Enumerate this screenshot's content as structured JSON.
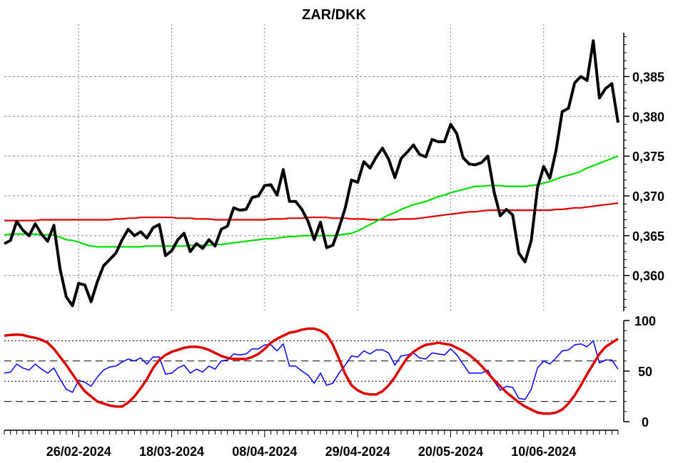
{
  "chart_data": [
    {
      "type": "line",
      "title": "ZAR/DKK",
      "x_labels": [
        "26/02-2024",
        "18/03-2024",
        "08/04-2024",
        "29/04-2024",
        "20/05-2024",
        "10/06-2024"
      ],
      "yticks": [
        "0,360",
        "0,365",
        "0,370",
        "0,375",
        "0,380",
        "0,385"
      ],
      "ylim": [
        0.3555,
        0.3905
      ],
      "grid": true,
      "series": [
        {
          "color": "#000000",
          "values": [
            0.364,
            0.3644,
            0.3668,
            0.3657,
            0.365,
            0.3665,
            0.3652,
            0.3643,
            0.3663,
            0.3608,
            0.3573,
            0.3562,
            0.359,
            0.3588,
            0.3567,
            0.3592,
            0.3612,
            0.362,
            0.3628,
            0.3645,
            0.3658,
            0.365,
            0.3655,
            0.3647,
            0.366,
            0.3664,
            0.3625,
            0.3631,
            0.3645,
            0.3653,
            0.363,
            0.364,
            0.3634,
            0.3645,
            0.3637,
            0.3658,
            0.3662,
            0.3685,
            0.3682,
            0.3683,
            0.3698,
            0.37,
            0.3713,
            0.3714,
            0.3701,
            0.3733,
            0.3693,
            0.3693,
            0.3683,
            0.3668,
            0.3645,
            0.3667,
            0.3635,
            0.3638,
            0.366,
            0.3685,
            0.372,
            0.3717,
            0.3743,
            0.3735,
            0.3749,
            0.376,
            0.3746,
            0.3723,
            0.3747,
            0.3755,
            0.3764,
            0.3752,
            0.3749,
            0.3771,
            0.3768,
            0.3768,
            0.379,
            0.3778,
            0.3748,
            0.374,
            0.3739,
            0.3742,
            0.375,
            0.3705,
            0.3675,
            0.3683,
            0.3676,
            0.3628,
            0.3617,
            0.3644,
            0.371,
            0.3737,
            0.3722,
            0.3757,
            0.3806,
            0.381,
            0.3842,
            0.385,
            0.3845,
            0.3895,
            0.3823,
            0.3835,
            0.3841,
            0.3792
          ]
        },
        {
          "color": "#00dd00",
          "values": [
            0.3651,
            0.3652,
            0.3652,
            0.3652,
            0.3652,
            0.3652,
            0.3651,
            0.3651,
            0.3651,
            0.3648,
            0.3645,
            0.3644,
            0.3642,
            0.3639,
            0.3637,
            0.3636,
            0.3636,
            0.3636,
            0.3636,
            0.3636,
            0.3636,
            0.3636,
            0.3636,
            0.3637,
            0.3637,
            0.3637,
            0.3637,
            0.3637,
            0.3637,
            0.3637,
            0.3638,
            0.3638,
            0.3638,
            0.3638,
            0.3639,
            0.3639,
            0.364,
            0.3641,
            0.3642,
            0.3643,
            0.3644,
            0.3645,
            0.3646,
            0.3646,
            0.3647,
            0.3648,
            0.3649,
            0.3649,
            0.365,
            0.365,
            0.365,
            0.365,
            0.365,
            0.365,
            0.3651,
            0.3652,
            0.3653,
            0.3656,
            0.366,
            0.3664,
            0.3668,
            0.3672,
            0.3676,
            0.3679,
            0.3683,
            0.3686,
            0.3689,
            0.3691,
            0.3693,
            0.3696,
            0.3699,
            0.3701,
            0.3704,
            0.3706,
            0.3708,
            0.371,
            0.3712,
            0.3712,
            0.3713,
            0.3713,
            0.3713,
            0.3712,
            0.3712,
            0.3712,
            0.3712,
            0.3713,
            0.3714,
            0.3716,
            0.3718,
            0.3721,
            0.3724,
            0.3726,
            0.3728,
            0.3731,
            0.3735,
            0.3738,
            0.3741,
            0.3744,
            0.3747,
            0.375
          ]
        },
        {
          "color": "#dd0000",
          "values": [
            0.3669,
            0.3669,
            0.3669,
            0.3669,
            0.3669,
            0.3669,
            0.367,
            0.367,
            0.367,
            0.367,
            0.367,
            0.367,
            0.367,
            0.367,
            0.367,
            0.367,
            0.367,
            0.367,
            0.3671,
            0.3671,
            0.3672,
            0.3672,
            0.3673,
            0.3673,
            0.3673,
            0.3673,
            0.3673,
            0.3673,
            0.3672,
            0.3672,
            0.3672,
            0.3671,
            0.3671,
            0.3671,
            0.367,
            0.367,
            0.367,
            0.367,
            0.367,
            0.367,
            0.367,
            0.367,
            0.367,
            0.3671,
            0.3671,
            0.3671,
            0.3672,
            0.3672,
            0.3672,
            0.3673,
            0.3673,
            0.3673,
            0.3673,
            0.3672,
            0.3672,
            0.3672,
            0.3671,
            0.3671,
            0.3671,
            0.367,
            0.367,
            0.367,
            0.367,
            0.367,
            0.3671,
            0.3671,
            0.3671,
            0.3672,
            0.3673,
            0.3674,
            0.3675,
            0.3676,
            0.3677,
            0.3678,
            0.3679,
            0.368,
            0.368,
            0.3681,
            0.3682,
            0.3682,
            0.3682,
            0.3682,
            0.3682,
            0.3682,
            0.3682,
            0.3682,
            0.3682,
            0.3682,
            0.3682,
            0.3683,
            0.3683,
            0.3684,
            0.3685,
            0.3685,
            0.3686,
            0.3687,
            0.3688,
            0.3689,
            0.369,
            0.3691
          ]
        }
      ]
    },
    {
      "type": "line",
      "yticks": [
        "0",
        "50",
        "100"
      ],
      "ylim": [
        0,
        100
      ],
      "reference_lines": [
        20,
        40,
        60,
        80
      ],
      "series": [
        {
          "color": "#0000ff",
          "values": [
            48,
            49,
            57,
            53,
            51,
            57,
            52,
            48,
            53,
            42,
            32,
            29,
            41,
            39,
            35,
            44,
            51,
            54,
            55,
            59,
            62,
            60,
            63,
            57,
            64,
            64,
            47,
            48,
            53,
            56,
            48,
            52,
            49,
            55,
            52,
            60,
            61,
            67,
            66,
            67,
            72,
            72,
            76,
            76,
            70,
            77,
            55,
            55,
            50,
            46,
            38,
            48,
            36,
            38,
            48,
            56,
            65,
            64,
            70,
            67,
            71,
            71,
            68,
            56,
            65,
            66,
            68,
            63,
            62,
            68,
            67,
            66,
            72,
            66,
            57,
            48,
            48,
            48,
            51,
            40,
            31,
            35,
            34,
            23,
            22,
            32,
            53,
            60,
            57,
            63,
            70,
            71,
            76,
            77,
            74,
            80,
            58,
            61,
            61,
            52
          ]
        },
        {
          "color": "#dd0000",
          "values": [
            85,
            85.8,
            86.1,
            85.7,
            84,
            82.9,
            81,
            78,
            72,
            64,
            56,
            47,
            38,
            30,
            25,
            20,
            18,
            16,
            15,
            15,
            19,
            25,
            33,
            42,
            53,
            61,
            66,
            69,
            71,
            73,
            74,
            74,
            73,
            71,
            68,
            65,
            63,
            62,
            62,
            62,
            64,
            67,
            72,
            78,
            82,
            85,
            88,
            89,
            91,
            92,
            92,
            90,
            86,
            76,
            62,
            47,
            36,
            31,
            28,
            27,
            27,
            30,
            36,
            44,
            54,
            63,
            69,
            73,
            76,
            77,
            78,
            77,
            76,
            73,
            70,
            66,
            61,
            55,
            48,
            41,
            35,
            29,
            24,
            19,
            15,
            12,
            9,
            8,
            8,
            9,
            12,
            18,
            26,
            36,
            47,
            57,
            67,
            74,
            78,
            82
          ]
        }
      ]
    }
  ]
}
